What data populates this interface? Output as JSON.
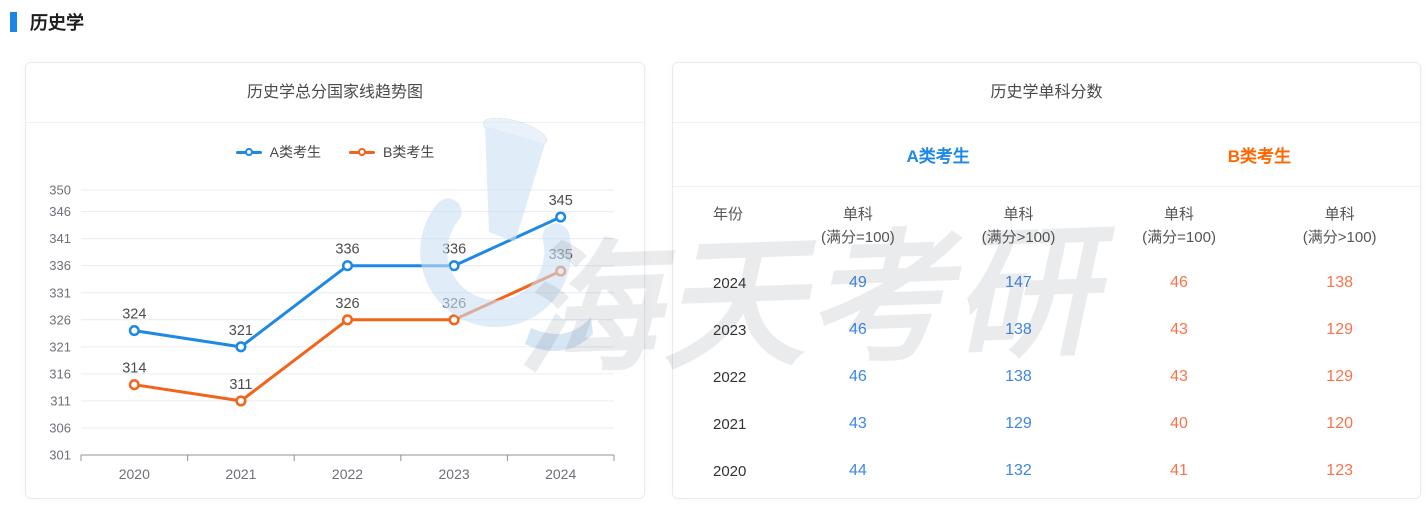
{
  "page": {
    "section_title": "历史学"
  },
  "colors": {
    "accent": "#1b84e7",
    "series_a": "#1e88e5",
    "series_b": "#f2641a",
    "a_header": "#1b87e9",
    "b_header": "#ff6600",
    "a_value": "#3e86e8",
    "b_value": "#f8734a",
    "grid": "#e6ecf4",
    "axis": "#8f9399",
    "tick_label": "#6e7079",
    "point_label": "#4c4c4c"
  },
  "trend_card": {
    "title": "历史学总分国家线趋势图"
  },
  "chart_data": {
    "type": "line",
    "title": "历史学总分国家线趋势图",
    "categories": [
      "2020",
      "2021",
      "2022",
      "2023",
      "2024"
    ],
    "series": [
      {
        "name": "A类考生",
        "color": "#1e88e5",
        "values": [
          324,
          321,
          336,
          336,
          345
        ]
      },
      {
        "name": "B类考生",
        "color": "#f2641a",
        "values": [
          314,
          311,
          326,
          326,
          335
        ]
      }
    ],
    "ylim": [
      301,
      350
    ],
    "yticks": [
      301,
      306,
      311,
      316,
      321,
      326,
      331,
      336,
      341,
      346,
      350
    ],
    "grid": true,
    "legend_position": "top",
    "point_labels": true
  },
  "score_card": {
    "title": "历史学单科分数",
    "group_headers": [
      {
        "label": "A类考生"
      },
      {
        "label": "B类考生"
      }
    ],
    "columns": [
      {
        "line1": "年份",
        "line2": ""
      },
      {
        "line1": "单科",
        "line2": "(满分=100)"
      },
      {
        "line1": "单科",
        "line2": "(满分>100)"
      },
      {
        "line1": "单科",
        "line2": "(满分=100)"
      },
      {
        "line1": "单科",
        "line2": "(满分>100)"
      }
    ],
    "rows": [
      {
        "year": "2024",
        "values": [
          "49",
          "147",
          "46",
          "138"
        ]
      },
      {
        "year": "2023",
        "values": [
          "46",
          "138",
          "43",
          "129"
        ]
      },
      {
        "year": "2022",
        "values": [
          "46",
          "138",
          "43",
          "129"
        ]
      },
      {
        "year": "2021",
        "values": [
          "43",
          "129",
          "40",
          "120"
        ]
      },
      {
        "year": "2020",
        "values": [
          "44",
          "132",
          "41",
          "123"
        ]
      }
    ]
  },
  "watermark": {
    "text": "海天考研"
  }
}
